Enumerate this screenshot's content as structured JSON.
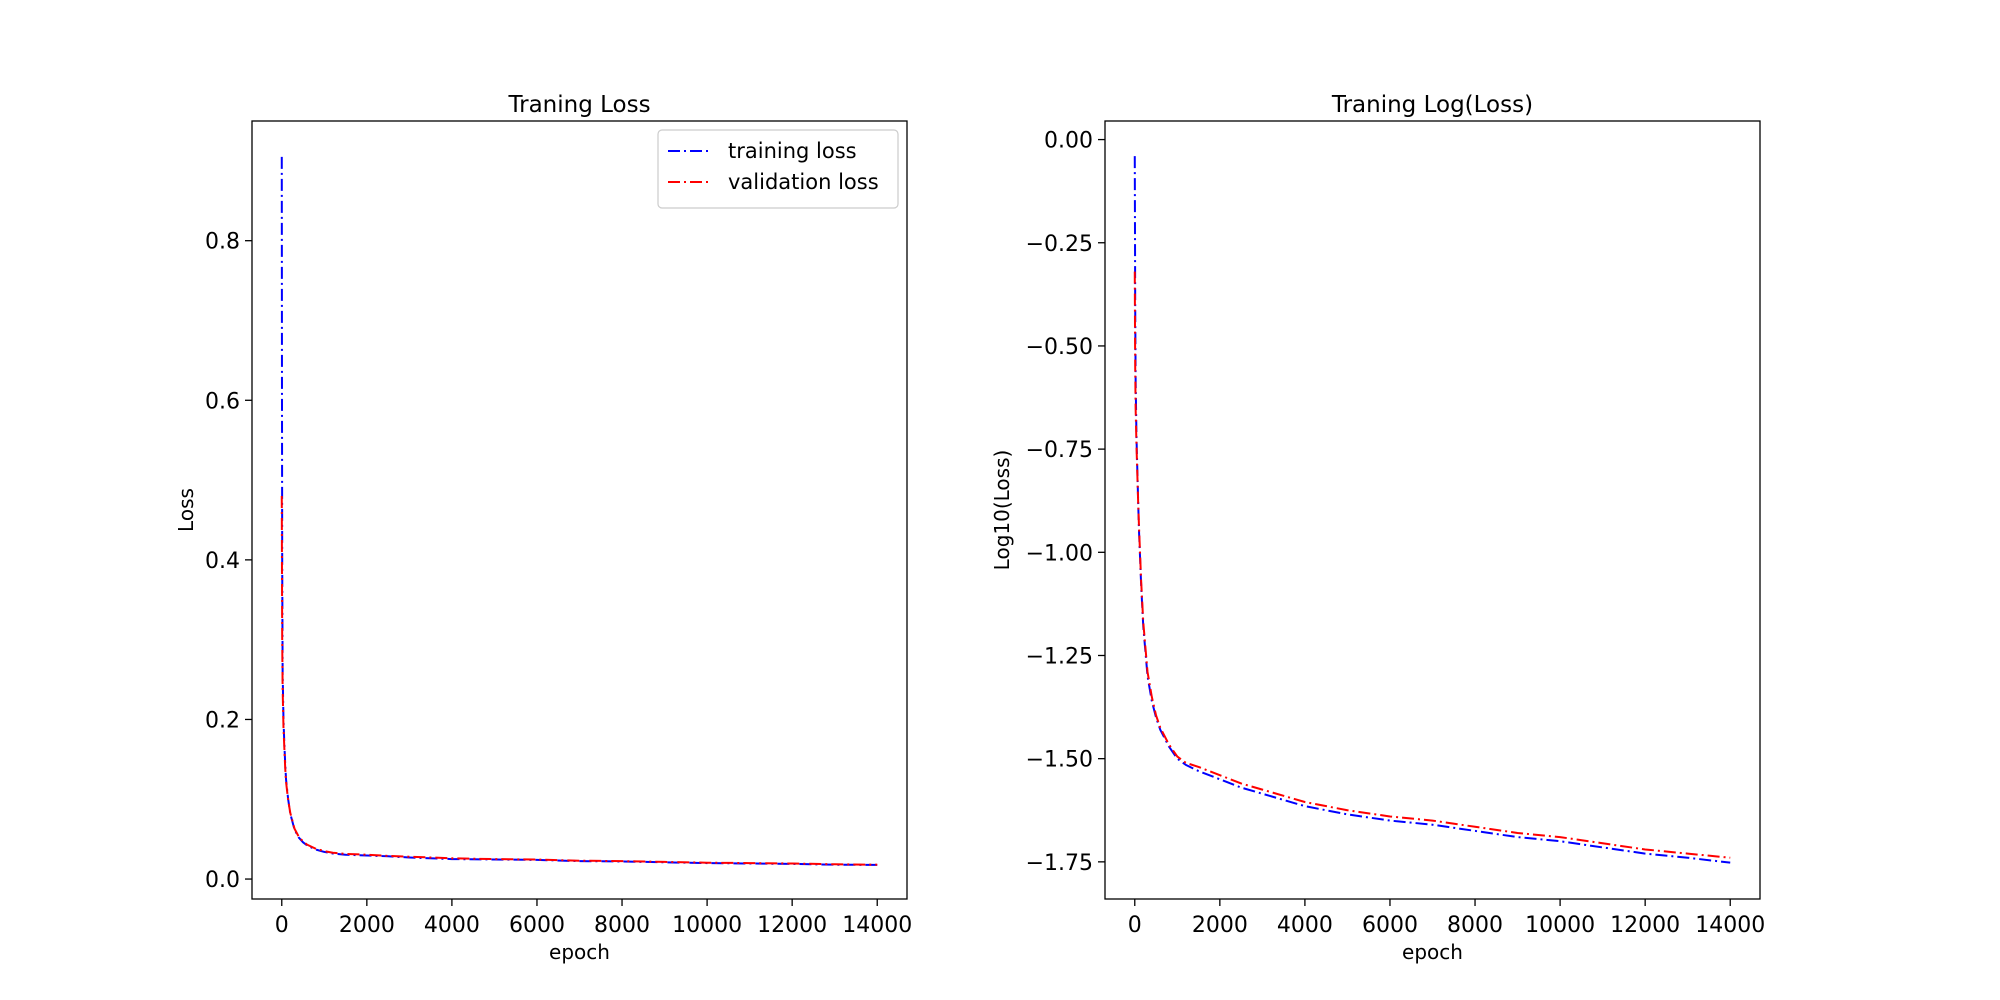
{
  "chart_data": [
    {
      "type": "line",
      "title": "Traning Loss",
      "xlabel": "epoch",
      "ylabel": "Loss",
      "xlim": [
        -700,
        14700
      ],
      "ylim": [
        -0.025,
        0.95
      ],
      "xticks": [
        0,
        2000,
        4000,
        6000,
        8000,
        10000,
        12000,
        14000
      ],
      "xtick_labels": [
        "0",
        "2000",
        "4000",
        "6000",
        "8000",
        "10000",
        "12000",
        "14000"
      ],
      "yticks": [
        0.0,
        0.2,
        0.4,
        0.6,
        0.8
      ],
      "ytick_labels": [
        "0.0",
        "0.2",
        "0.4",
        "0.6",
        "0.8"
      ],
      "grid": false,
      "legend": {
        "placement": "top-right",
        "entries": [
          "training loss",
          "validation loss"
        ]
      },
      "series": [
        {
          "name": "training loss",
          "color": "#0000ff",
          "linestyle": "dashdot",
          "x": [
            0,
            5,
            10,
            20,
            40,
            60,
            80,
            100,
            150,
            200,
            300,
            400,
            500,
            600,
            800,
            1000,
            1200,
            1500,
            2000,
            2500,
            3000,
            4000,
            5000,
            6000,
            7000,
            8000,
            9000,
            10000,
            11000,
            12000,
            13000,
            14000
          ],
          "y": [
            0.905,
            0.6,
            0.4,
            0.26,
            0.2,
            0.17,
            0.145,
            0.125,
            0.1,
            0.082,
            0.062,
            0.052,
            0.046,
            0.042,
            0.037,
            0.034,
            0.032,
            0.0305,
            0.0295,
            0.0285,
            0.027,
            0.025,
            0.0245,
            0.024,
            0.0225,
            0.022,
            0.021,
            0.02,
            0.0195,
            0.019,
            0.018,
            0.0177
          ]
        },
        {
          "name": "validation loss",
          "color": "#ff0000",
          "linestyle": "dashdot",
          "x": [
            0,
            5,
            10,
            20,
            40,
            60,
            80,
            100,
            150,
            200,
            300,
            400,
            500,
            600,
            800,
            1000,
            1200,
            1500,
            2000,
            2500,
            3000,
            4000,
            5000,
            6000,
            7000,
            8000,
            9000,
            10000,
            11000,
            12000,
            13000,
            14000
          ],
          "y": [
            0.48,
            0.38,
            0.3,
            0.24,
            0.19,
            0.165,
            0.14,
            0.122,
            0.099,
            0.083,
            0.063,
            0.053,
            0.047,
            0.043,
            0.038,
            0.035,
            0.033,
            0.0315,
            0.0305,
            0.029,
            0.028,
            0.026,
            0.025,
            0.0245,
            0.023,
            0.0225,
            0.0215,
            0.0205,
            0.02,
            0.0195,
            0.0185,
            0.018
          ]
        }
      ]
    },
    {
      "type": "line",
      "title": "Traning Log(Loss)",
      "xlabel": "epoch",
      "ylabel": "Log10(Loss)",
      "xlim": [
        -700,
        14700
      ],
      "ylim": [
        -1.84,
        0.045
      ],
      "xticks": [
        0,
        2000,
        4000,
        6000,
        8000,
        10000,
        12000,
        14000
      ],
      "xtick_labels": [
        "0",
        "2000",
        "4000",
        "6000",
        "8000",
        "10000",
        "12000",
        "14000"
      ],
      "yticks": [
        0.0,
        -0.25,
        -0.5,
        -0.75,
        -1.0,
        -1.25,
        -1.5,
        -1.75
      ],
      "ytick_labels": [
        "0.00",
        "−0.25",
        "−0.50",
        "−0.75",
        "−1.00",
        "−1.25",
        "−1.50",
        "−1.75"
      ],
      "grid": false,
      "series": [
        {
          "name": "training loss",
          "color": "#0000ff",
          "linestyle": "dashdot",
          "x": [
            0,
            5,
            10,
            20,
            40,
            60,
            80,
            100,
            150,
            200,
            300,
            400,
            500,
            600,
            800,
            1000,
            1200,
            1500,
            2000,
            2500,
            3000,
            3500,
            4000,
            5000,
            6000,
            7000,
            8000,
            9000,
            10000,
            11000,
            12000,
            13000,
            14000
          ],
          "y": [
            -0.04,
            -0.22,
            -0.4,
            -0.58,
            -0.72,
            -0.8,
            -0.88,
            -0.95,
            -1.08,
            -1.18,
            -1.3,
            -1.36,
            -1.4,
            -1.43,
            -1.47,
            -1.5,
            -1.515,
            -1.53,
            -1.55,
            -1.57,
            -1.585,
            -1.6,
            -1.615,
            -1.635,
            -1.65,
            -1.66,
            -1.675,
            -1.69,
            -1.7,
            -1.715,
            -1.73,
            -1.74,
            -1.752
          ]
        },
        {
          "name": "validation loss",
          "color": "#ff0000",
          "linestyle": "dashdot",
          "x": [
            0,
            5,
            10,
            20,
            40,
            60,
            80,
            100,
            150,
            200,
            300,
            400,
            500,
            600,
            800,
            1000,
            1200,
            1500,
            2000,
            2500,
            3000,
            3500,
            4000,
            5000,
            6000,
            7000,
            8000,
            9000,
            10000,
            11000,
            12000,
            13000,
            14000
          ],
          "y": [
            -0.32,
            -0.45,
            -0.55,
            -0.65,
            -0.74,
            -0.81,
            -0.88,
            -0.94,
            -1.07,
            -1.17,
            -1.29,
            -1.35,
            -1.395,
            -1.425,
            -1.465,
            -1.495,
            -1.51,
            -1.52,
            -1.54,
            -1.56,
            -1.575,
            -1.59,
            -1.605,
            -1.625,
            -1.64,
            -1.65,
            -1.665,
            -1.68,
            -1.69,
            -1.705,
            -1.72,
            -1.73,
            -1.74
          ]
        }
      ]
    }
  ]
}
